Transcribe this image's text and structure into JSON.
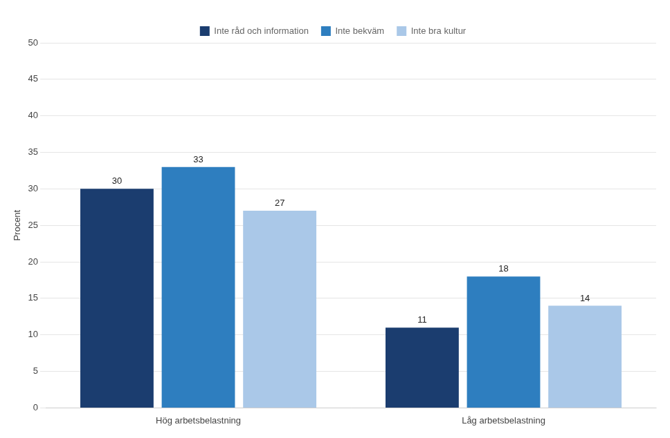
{
  "chart_data": {
    "type": "bar",
    "categories": [
      "Hög arbetsbelastning",
      "Låg arbetsbelastning"
    ],
    "series": [
      {
        "name": "Inte råd och information",
        "color": "#1b3d6f",
        "values": [
          30,
          11
        ]
      },
      {
        "name": "Inte bekväm",
        "color": "#2e7ebf",
        "values": [
          33,
          18
        ]
      },
      {
        "name": "Inte bra kultur",
        "color": "#aac8e8",
        "values": [
          27,
          14
        ]
      }
    ],
    "ylabel": "Procent",
    "ylim": [
      0,
      50
    ],
    "yticks": [
      0,
      5,
      10,
      15,
      20,
      25,
      30,
      35,
      40,
      45,
      50
    ],
    "grid": true,
    "legend": "top",
    "data_labels": true
  }
}
